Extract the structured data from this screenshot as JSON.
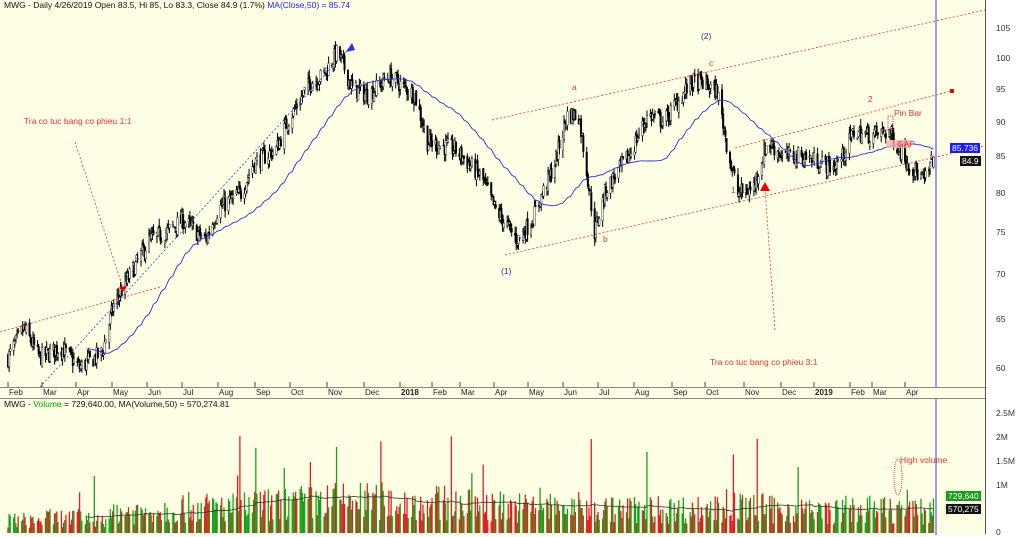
{
  "header": {
    "price_info": "MWG - Daily 4/26/2019 Open 83.5, Hi 85, Lo 83.3, Close 84.9 (1.7%)",
    "ma_info": "MA(Close,50) = 85.74",
    "volume_prefix": "MWG - ",
    "volume_word": "Volume",
    "volume_info": " = 729,640.00, MA(Volume,50) = 570,274.81"
  },
  "annotations": {
    "dividend_1": "Tra co tuc bang co phieu 1:1",
    "dividend_2": "Tra co tuc bang co phieu 3:1",
    "wave_1": "(1)",
    "wave_2": "(2)",
    "wave_a": "a",
    "wave_b": "b",
    "wave_c": "c",
    "label_1": "1",
    "label_2": "2",
    "pin_bar": "Pin Bar",
    "gap": "GAP",
    "high_volume": "High volume"
  },
  "tags": {
    "ma_value": "85.736",
    "close_value": "84.9",
    "volume_value": "729,640",
    "volume_ma_value": "570,275"
  },
  "colors": {
    "background": "#ffffe6",
    "ma_line": "#2233dd",
    "annotation": "#e83030",
    "volume_up": "#1aa01a",
    "volume_down": "#e02020",
    "candle": "#000000"
  },
  "chart_data": [
    {
      "type": "candlestick",
      "symbol": "MWG",
      "scale": "log",
      "ylim": [
        58,
        108
      ],
      "y_ticks": [
        "105",
        "100",
        "95",
        "90",
        "85",
        "80",
        "75",
        "70",
        "65",
        "60"
      ],
      "x_ticks": [
        "Feb",
        "Mar",
        "Apr",
        "May",
        "Jun",
        "Jul",
        "Aug",
        "Sep",
        "Oct",
        "Nov",
        "Dec",
        "2018",
        "Feb",
        "Mar",
        "Apr",
        "May",
        "Jun",
        "Jul",
        "Aug",
        "Sep",
        "Oct",
        "Nov",
        "Dec",
        "2019",
        "Feb",
        "Mar",
        "Apr"
      ],
      "last_bar": {
        "date": "2019-04-26",
        "open": 83.5,
        "high": 85,
        "low": 83.3,
        "close": 84.9,
        "change_pct": 1.7
      },
      "ma50_last": 85.74,
      "close_path": [
        [
          "2017-02-01",
          61
        ],
        [
          "2017-02-15",
          64
        ],
        [
          "2017-03-01",
          61
        ],
        [
          "2017-03-20",
          62
        ],
        [
          "2017-04-05",
          60
        ],
        [
          "2017-04-25",
          61.5
        ],
        [
          "2017-05-05",
          66.5
        ],
        [
          "2017-05-20",
          70
        ],
        [
          "2017-06-05",
          74
        ],
        [
          "2017-06-20",
          75
        ],
        [
          "2017-07-05",
          76.5
        ],
        [
          "2017-07-25",
          74
        ],
        [
          "2017-08-05",
          78
        ],
        [
          "2017-08-25",
          80
        ],
        [
          "2017-09-05",
          84
        ],
        [
          "2017-09-25",
          86
        ],
        [
          "2017-10-05",
          90
        ],
        [
          "2017-10-25",
          96
        ],
        [
          "2017-11-05",
          97
        ],
        [
          "2017-11-18",
          101
        ],
        [
          "2017-12-01",
          95
        ],
        [
          "2017-12-15",
          94
        ],
        [
          "2018-01-02",
          97
        ],
        [
          "2018-01-25",
          94
        ],
        [
          "2018-02-05",
          87
        ],
        [
          "2018-03-01",
          86
        ],
        [
          "2018-03-25",
          82
        ],
        [
          "2018-04-05",
          78
        ],
        [
          "2018-04-25",
          74
        ],
        [
          "2018-05-08",
          76.5
        ],
        [
          "2018-05-28",
          84
        ],
        [
          "2018-06-08",
          91
        ],
        [
          "2018-06-18",
          91
        ],
        [
          "2018-07-02",
          75
        ],
        [
          "2018-07-12",
          80.5
        ],
        [
          "2018-08-01",
          85
        ],
        [
          "2018-08-18",
          91
        ],
        [
          "2018-09-01",
          90
        ],
        [
          "2018-09-25",
          96
        ],
        [
          "2018-10-05",
          96
        ],
        [
          "2018-10-18",
          94.5
        ],
        [
          "2018-10-28",
          85
        ],
        [
          "2018-11-05",
          80
        ],
        [
          "2018-11-18",
          80.5
        ],
        [
          "2018-12-01",
          87
        ],
        [
          "2018-12-15",
          85
        ],
        [
          "2019-01-02",
          85
        ],
        [
          "2019-01-28",
          83.5
        ],
        [
          "2019-02-05",
          85
        ],
        [
          "2019-02-15",
          88.5
        ],
        [
          "2019-03-01",
          88
        ],
        [
          "2019-03-18",
          88.5
        ],
        [
          "2019-04-02",
          84.5
        ],
        [
          "2019-04-18",
          81.5
        ],
        [
          "2019-04-26",
          84.9
        ]
      ]
    },
    {
      "type": "bar",
      "series": "Volume",
      "y_ticks": [
        "2.5M",
        "2M",
        "1.5M",
        "1M",
        "0"
      ],
      "ylim": [
        0,
        2700000
      ],
      "last_volume": 729640,
      "ma50_last": 570274.81,
      "monthly_avg_volume_m": [
        0.3,
        0.35,
        0.35,
        0.5,
        0.55,
        0.6,
        0.6,
        0.65,
        0.7,
        0.75,
        0.75,
        0.7,
        0.7,
        0.65,
        0.6,
        0.6,
        0.6,
        0.55,
        0.55,
        0.55,
        0.55,
        0.6,
        0.55,
        0.5,
        0.55,
        0.55,
        0.5
      ]
    }
  ]
}
